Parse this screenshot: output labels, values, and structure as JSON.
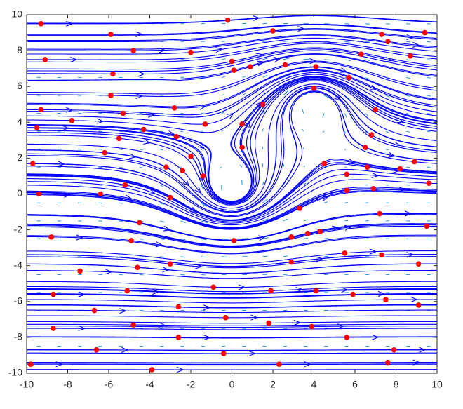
{
  "chart_data": {
    "type": "streamline",
    "x": [
      -9.3,
      -5.9,
      -0.2,
      2.0,
      7.3,
      9.4,
      7.6,
      -9.1,
      -4.8,
      -2.0,
      6.3,
      8.7,
      0.0,
      0.9,
      2.6,
      4.1,
      -5.8,
      0.1,
      5.7,
      -5.9,
      4.0,
      -2.8,
      -9.3,
      -5.3,
      1.5,
      7.0,
      -7.8,
      -9.5,
      -4.3,
      -1.3,
      0.5,
      6.8,
      -5.5,
      -2.7,
      -6.2,
      0.5,
      6.5,
      -2.0,
      8.9,
      4.5,
      -9.7,
      6.6,
      -3.2,
      8.2,
      -2.4,
      5.6,
      -1.4,
      -5.2,
      9.6,
      6.9,
      5.6,
      -9.4,
      -6.4,
      -3.0,
      3.3,
      7.2,
      -4.5,
      9.5,
      4.3,
      3.7,
      -8.8,
      2.9,
      -4.9,
      0.1,
      5.5,
      2.9,
      -3.0,
      7.3,
      9.1,
      -4.6,
      -7.4,
      -0.9,
      -5.1,
      1.9,
      4.1,
      -8.7,
      5.9,
      7.5,
      -2.6,
      9.1,
      -6.7,
      -0.3,
      -4.8,
      1.8,
      3.9,
      -8.7,
      -2.6,
      5.6,
      -6.6,
      -0.4,
      7.9,
      -9.8,
      -3.9,
      2.3,
      7.6
    ],
    "y": [
      9.5,
      8.9,
      9.7,
      9.1,
      8.9,
      9.0,
      8.5,
      7.5,
      8.0,
      7.9,
      7.8,
      7.7,
      7.4,
      7.1,
      7.2,
      7.1,
      6.7,
      6.9,
      6.5,
      5.5,
      5.9,
      4.8,
      4.7,
      4.5,
      5.0,
      4.7,
      4.1,
      3.7,
      3.6,
      3.9,
      3.9,
      3.3,
      3.1,
      3.2,
      2.3,
      2.6,
      2.6,
      2.1,
      1.8,
      1.7,
      1.7,
      1.5,
      1.5,
      1.4,
      1.3,
      1.1,
      1.0,
      0.5,
      0.6,
      0.3,
      0.2,
      0.0,
      0.0,
      -0.2,
      -0.8,
      -1.1,
      -1.6,
      -1.8,
      -2.1,
      -2.2,
      -2.4,
      -2.4,
      -2.6,
      -2.6,
      -3.3,
      -3.8,
      -3.9,
      -3.4,
      -3.9,
      -4.1,
      -4.3,
      -5.2,
      -5.4,
      -5.4,
      -5.4,
      -5.6,
      -5.6,
      -5.9,
      -6.3,
      -6.2,
      -6.5,
      -6.9,
      -7.3,
      -7.2,
      -7.4,
      -7.5,
      -8.0,
      -8.0,
      -8.7,
      -8.9,
      -8.7,
      -9.5,
      -9.8,
      -9.5,
      -9.4
    ],
    "color": "#ff0000",
    "streamline_color": "#0000ff",
    "arrow_color": "#1f8fd0",
    "xlim": [
      -10,
      10
    ],
    "ylim": [
      -10,
      10
    ],
    "xticks": [
      -10,
      -8,
      -6,
      -4,
      -2,
      0,
      2,
      4,
      6,
      8,
      10
    ],
    "yticks": [
      -10,
      -8,
      -6,
      -4,
      -2,
      0,
      2,
      4,
      6,
      8,
      10
    ]
  }
}
